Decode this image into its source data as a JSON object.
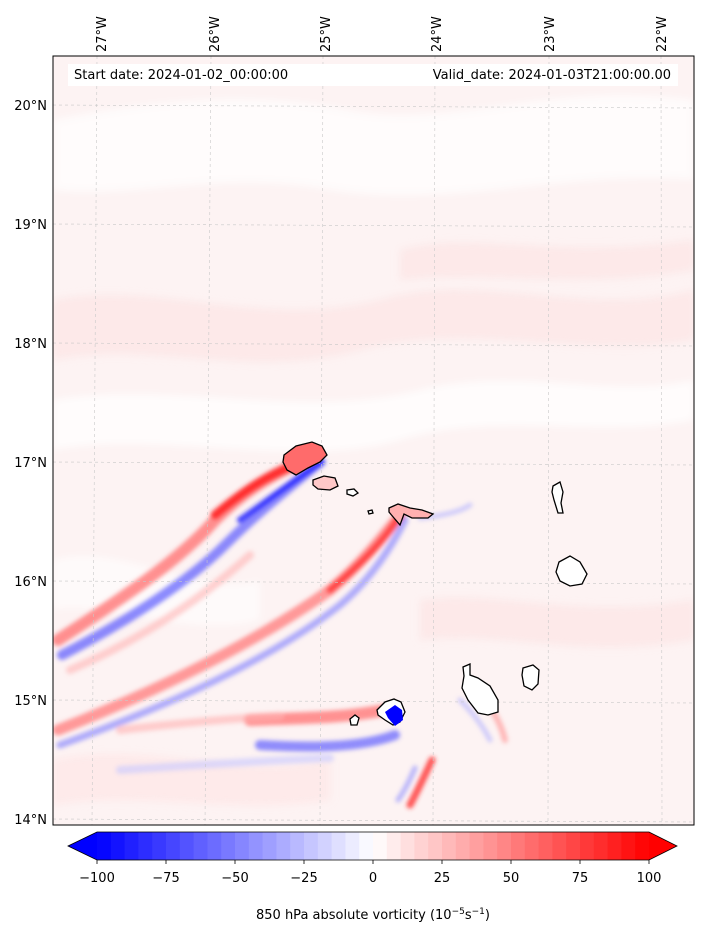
{
  "header": {
    "start_date": "Start date: 2024-01-02_00:00:00",
    "valid_date": "Valid_date: 2024-01-03T21:00:00.00"
  },
  "map": {
    "lon_labels": [
      "27°W",
      "26°W",
      "25°W",
      "24°W",
      "23°W",
      "22°W"
    ],
    "lat_labels": [
      "20°N",
      "19°N",
      "18°N",
      "17°N",
      "16°N",
      "15°N",
      "14°N"
    ]
  },
  "colorbar": {
    "tick_labels": [
      "−100",
      "−75",
      "−50",
      "−25",
      "0",
      "25",
      "50",
      "75",
      "100"
    ],
    "label_main": "850 hPa absolute vorticity (10",
    "label_exp1": "−5",
    "label_mid": "s",
    "label_exp2": "−1",
    "label_end": ")",
    "min": -100,
    "max": 100,
    "step": 5,
    "neg_color": "#0000ff",
    "pos_color": "#ff0000",
    "mid_color": "#ffffff"
  },
  "colors": {
    "background_tint": "#fdf3f3",
    "grid": "#c8c8c8",
    "coast": "#000000"
  }
}
